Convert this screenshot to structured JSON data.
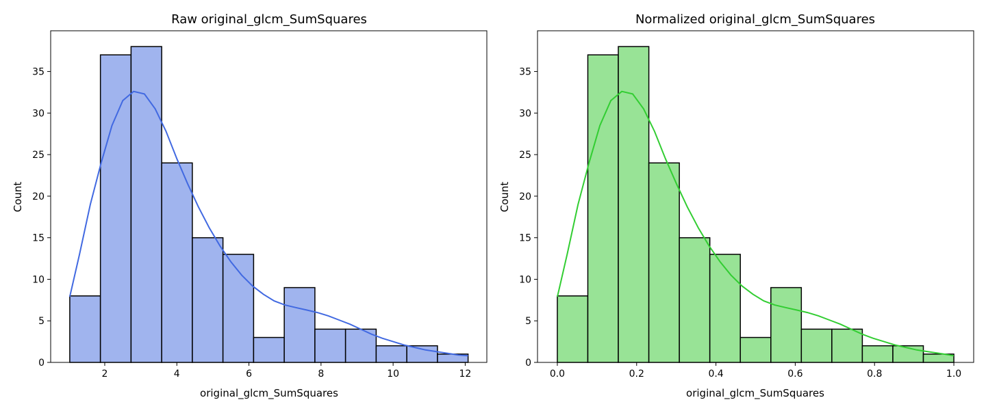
{
  "chart_data": [
    {
      "type": "bar",
      "title": "Raw original_glcm_SumSquares",
      "xlabel": "original_glcm_SumSquares",
      "ylabel": "Count",
      "bin_edges": [
        1.03,
        1.88,
        2.73,
        3.58,
        4.43,
        5.28,
        6.13,
        6.98,
        7.83,
        8.68,
        9.53,
        10.38,
        11.23,
        12.08
      ],
      "values": [
        8,
        37,
        38,
        24,
        15,
        13,
        3,
        9,
        4,
        4,
        2,
        2,
        1
      ],
      "kde": [
        [
          1.03,
          7.9
        ],
        [
          1.3,
          13
        ],
        [
          1.6,
          19
        ],
        [
          1.9,
          24
        ],
        [
          2.2,
          28.5
        ],
        [
          2.5,
          31.5
        ],
        [
          2.8,
          32.6
        ],
        [
          3.1,
          32.3
        ],
        [
          3.4,
          30.5
        ],
        [
          3.7,
          27.8
        ],
        [
          4.0,
          24.5
        ],
        [
          4.3,
          21.5
        ],
        [
          4.6,
          18.7
        ],
        [
          4.9,
          16.2
        ],
        [
          5.2,
          14
        ],
        [
          5.5,
          12.1
        ],
        [
          5.8,
          10.5
        ],
        [
          6.1,
          9.2
        ],
        [
          6.4,
          8.2
        ],
        [
          6.7,
          7.4
        ],
        [
          7.0,
          6.9
        ],
        [
          7.3,
          6.6
        ],
        [
          7.6,
          6.3
        ],
        [
          7.9,
          6.0
        ],
        [
          8.2,
          5.6
        ],
        [
          8.5,
          5.1
        ],
        [
          8.8,
          4.6
        ],
        [
          9.1,
          4.0
        ],
        [
          9.4,
          3.4
        ],
        [
          9.7,
          2.9
        ],
        [
          10.0,
          2.5
        ],
        [
          10.3,
          2.1
        ],
        [
          10.6,
          1.8
        ],
        [
          10.9,
          1.5
        ],
        [
          11.2,
          1.3
        ],
        [
          11.5,
          1.1
        ],
        [
          11.8,
          0.9
        ],
        [
          12.08,
          0.8
        ]
      ],
      "xlim": [
        0.5,
        12.6
      ],
      "ylim": [
        0,
        39.9
      ],
      "xticks": [
        2,
        4,
        6,
        8,
        10,
        12
      ],
      "yticks": [
        0,
        5,
        10,
        15,
        20,
        25,
        30,
        35
      ],
      "bar_color": "#a0b4ee",
      "line_color": "#4169e1",
      "grid": false,
      "legend": "none"
    },
    {
      "type": "bar",
      "title": "Normalized original_glcm_SumSquares",
      "xlabel": "original_glcm_SumSquares",
      "ylabel": "Count",
      "bin_edges": [
        0.0,
        0.0769,
        0.1538,
        0.2308,
        0.3077,
        0.3846,
        0.4615,
        0.5385,
        0.6154,
        0.6923,
        0.7692,
        0.8462,
        0.9231,
        1.0
      ],
      "values": [
        8,
        37,
        38,
        24,
        15,
        13,
        3,
        9,
        4,
        4,
        2,
        2,
        1
      ],
      "kde": [
        [
          0.0,
          7.9
        ],
        [
          0.0247,
          13
        ],
        [
          0.0523,
          19
        ],
        [
          0.0798,
          24
        ],
        [
          0.1074,
          28.5
        ],
        [
          0.1349,
          31.5
        ],
        [
          0.1625,
          32.6
        ],
        [
          0.1901,
          32.3
        ],
        [
          0.2176,
          30.5
        ],
        [
          0.2452,
          27.8
        ],
        [
          0.2727,
          24.5
        ],
        [
          0.3003,
          21.5
        ],
        [
          0.3278,
          18.7
        ],
        [
          0.3554,
          16.2
        ],
        [
          0.3829,
          14
        ],
        [
          0.4105,
          12.1
        ],
        [
          0.438,
          10.5
        ],
        [
          0.4656,
          9.2
        ],
        [
          0.4932,
          8.2
        ],
        [
          0.5207,
          7.4
        ],
        [
          0.5483,
          6.9
        ],
        [
          0.5758,
          6.6
        ],
        [
          0.6034,
          6.3
        ],
        [
          0.6309,
          6.0
        ],
        [
          0.6585,
          5.6
        ],
        [
          0.686,
          5.1
        ],
        [
          0.7136,
          4.6
        ],
        [
          0.7411,
          4.0
        ],
        [
          0.7687,
          3.4
        ],
        [
          0.7963,
          2.9
        ],
        [
          0.8238,
          2.5
        ],
        [
          0.8514,
          2.1
        ],
        [
          0.8789,
          1.8
        ],
        [
          0.9065,
          1.5
        ],
        [
          0.934,
          1.3
        ],
        [
          0.9616,
          1.1
        ],
        [
          0.9891,
          0.9
        ],
        [
          1.0,
          0.8
        ]
      ],
      "xlim": [
        -0.05,
        1.05
      ],
      "ylim": [
        0,
        39.9
      ],
      "xticks": [
        0.0,
        0.2,
        0.4,
        0.6,
        0.8,
        1.0
      ],
      "xtick_labels": [
        "0.0",
        "0.2",
        "0.4",
        "0.6",
        "0.8",
        "1.0"
      ],
      "yticks": [
        0,
        5,
        10,
        15,
        20,
        25,
        30,
        35
      ],
      "bar_color": "#98e396",
      "line_color": "#32cd32",
      "grid": false,
      "legend": "none"
    }
  ]
}
